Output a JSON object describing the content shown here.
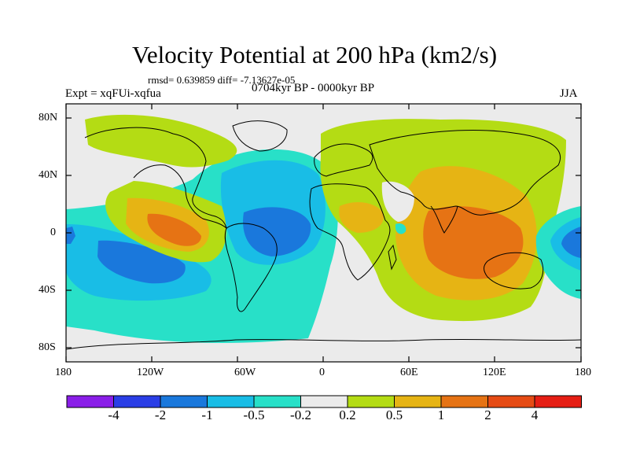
{
  "title": "Velocity Potential at 200 hPa (km2/s)",
  "stats": "rmsd= 0.639859 diff= -7.13627e-05",
  "experiment": "Expt = xqFUi-xqfua",
  "period": "0704kyr BP - 0000kyr BP",
  "season": "JJA",
  "y_ticks": [
    "80N",
    "40N",
    "0",
    "40S",
    "80S"
  ],
  "x_ticks": [
    "180",
    "120W",
    "60W",
    "0",
    "60E",
    "120E",
    "180"
  ],
  "colorbar": {
    "colors": [
      "#8a1ee8",
      "#2a3ee6",
      "#1a78dc",
      "#19bde6",
      "#28e0c8",
      "#ebebeb",
      "#b4dc14",
      "#e6b414",
      "#e67314",
      "#e64b14",
      "#e61e14"
    ],
    "labels": [
      "-4",
      "-2",
      "-1",
      "-0.5",
      "-0.2",
      "0.2",
      "0.5",
      "1",
      "2",
      "4"
    ]
  },
  "map_colors": {
    "background": "#ebebeb",
    "land_outline": "#000000"
  }
}
